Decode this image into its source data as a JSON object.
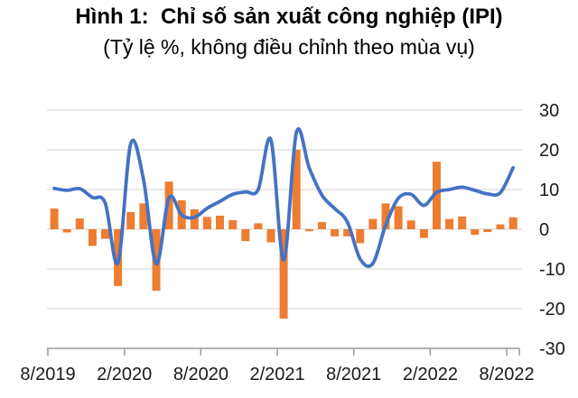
{
  "header": {
    "title": "Hình 1:  Chỉ số sản xuất công nghiệp (IPI)",
    "subtitle": "(Tỷ lệ %, không điều chỉnh theo mùa vụ)"
  },
  "colors": {
    "bar": "#ED7D31",
    "line": "#4472C4",
    "gridline": "#D9D9D9",
    "axis": "#999999",
    "text": "#1A1A1A"
  },
  "chart_data": {
    "type": "bar",
    "subtype": "bar+line combo, monthly series",
    "title": "Hình 1: Chỉ số sản xuất công nghiệp (IPI)",
    "subtitle": "(Tỷ lệ %, không điều chỉnh theo mùa vụ)",
    "legend": "none",
    "grid": true,
    "y_axis_side": "right",
    "ylim": [
      -30,
      30
    ],
    "y_ticks": [
      30,
      20,
      10,
      0,
      -10,
      -20,
      -30
    ],
    "x_tick_labels": [
      "8/2019",
      "2/2020",
      "8/2020",
      "2/2021",
      "8/2021",
      "2/2022",
      "8/2022"
    ],
    "x_months": [
      "8/2019",
      "9/2019",
      "10/2019",
      "11/2019",
      "12/2019",
      "1/2020",
      "2/2020",
      "3/2020",
      "4/2020",
      "5/2020",
      "6/2020",
      "7/2020",
      "8/2020",
      "9/2020",
      "10/2020",
      "11/2020",
      "12/2020",
      "1/2021",
      "2/2021",
      "3/2021",
      "4/2021",
      "5/2021",
      "6/2021",
      "7/2021",
      "8/2021",
      "9/2021",
      "10/2021",
      "11/2021",
      "12/2021",
      "1/2022",
      "2/2022",
      "3/2022",
      "4/2022",
      "5/2022",
      "6/2022",
      "7/2022",
      "8/2022"
    ],
    "series": [
      {
        "name": "monthly-change-bars",
        "type": "bar",
        "color": "#ED7D31",
        "values": [
          5.2,
          -0.8,
          2.7,
          -4.2,
          -2.4,
          -14.3,
          4.3,
          6.5,
          -15.5,
          12.0,
          7.3,
          5.0,
          3.1,
          3.4,
          2.3,
          -3.0,
          1.5,
          -3.3,
          -22.5,
          20.0,
          -0.5,
          1.8,
          -1.8,
          -1.8,
          -3.5,
          2.6,
          6.5,
          5.8,
          2.2,
          -2.2,
          17.0,
          2.6,
          3.2,
          -1.4,
          -0.7,
          1.2,
          3.0
        ]
      },
      {
        "name": "smoothed-trend-line",
        "type": "line",
        "color": "#4472C4",
        "values": [
          10.3,
          9.8,
          10.2,
          8.0,
          6.6,
          -8.4,
          21.5,
          12.5,
          -8.7,
          7.9,
          3.6,
          3.0,
          5.3,
          7.0,
          8.8,
          9.4,
          10.0,
          22.5,
          -7.7,
          24.4,
          15.5,
          8.6,
          5.2,
          1.8,
          -7.5,
          -8.6,
          1.0,
          7.8,
          8.8,
          6.0,
          9.3,
          10.0,
          10.6,
          9.8,
          8.9,
          9.2,
          15.5
        ]
      }
    ]
  }
}
